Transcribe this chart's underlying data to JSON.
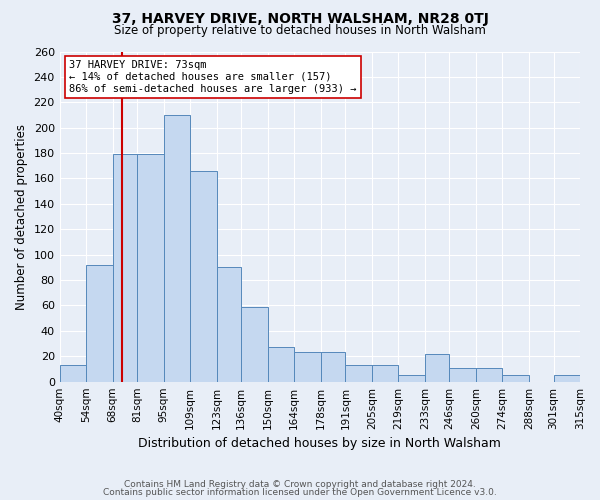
{
  "title": "37, HARVEY DRIVE, NORTH WALSHAM, NR28 0TJ",
  "subtitle": "Size of property relative to detached houses in North Walsham",
  "xlabel": "Distribution of detached houses by size in North Walsham",
  "ylabel": "Number of detached properties",
  "bin_labels": [
    "40sqm",
    "54sqm",
    "68sqm",
    "81sqm",
    "95sqm",
    "109sqm",
    "123sqm",
    "136sqm",
    "150sqm",
    "164sqm",
    "178sqm",
    "191sqm",
    "205sqm",
    "219sqm",
    "233sqm",
    "246sqm",
    "260sqm",
    "274sqm",
    "288sqm",
    "301sqm",
    "315sqm"
  ],
  "bar_values": [
    13,
    92,
    179,
    179,
    210,
    166,
    90,
    59,
    27,
    23,
    23,
    13,
    13,
    5,
    22,
    11,
    11,
    5,
    0,
    5
  ],
  "bin_edges": [
    40,
    54,
    68,
    81,
    95,
    109,
    123,
    136,
    150,
    164,
    178,
    191,
    205,
    219,
    233,
    246,
    260,
    274,
    288,
    301,
    315
  ],
  "bar_color": "#c5d8f0",
  "bar_edge_color": "#5588bb",
  "property_line_x": 73,
  "property_line_color": "#cc0000",
  "annotation_text": "37 HARVEY DRIVE: 73sqm\n← 14% of detached houses are smaller (157)\n86% of semi-detached houses are larger (933) →",
  "annotation_box_color": "#ffffff",
  "annotation_box_edge": "#cc0000",
  "ylim": [
    0,
    260
  ],
  "yticks": [
    0,
    20,
    40,
    60,
    80,
    100,
    120,
    140,
    160,
    180,
    200,
    220,
    240,
    260
  ],
  "footer1": "Contains HM Land Registry data © Crown copyright and database right 2024.",
  "footer2": "Contains public sector information licensed under the Open Government Licence v3.0.",
  "bg_color": "#e8eef7",
  "plot_bg_color": "#e8eef7"
}
